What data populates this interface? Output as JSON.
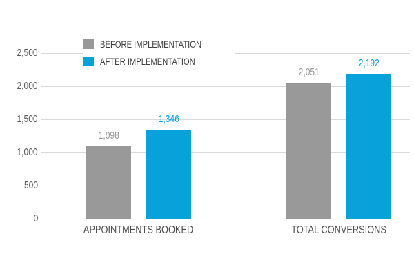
{
  "chart_data": {
    "type": "bar",
    "title": "",
    "xlabel": "",
    "ylabel": "",
    "categories": [
      "APPOINTMENTS BOOKED",
      "TOTAL CONVERSIONS"
    ],
    "series": [
      {
        "name": "BEFORE IMPLEMENTATION",
        "color": "#999999",
        "values": [
          1098,
          2051
        ],
        "value_labels": [
          "1,098",
          "2,051"
        ]
      },
      {
        "name": "AFTER IMPLEMENTATION",
        "color": "#09a1da",
        "values": [
          1346,
          2192
        ],
        "value_labels": [
          "1,346",
          "2,192"
        ]
      }
    ],
    "y_axis": {
      "min": 0,
      "max": 2500,
      "step": 500,
      "tick_labels": [
        "0",
        "500",
        "1,000",
        "1,500",
        "2,000",
        "2,500"
      ]
    },
    "grid": true,
    "legend_position": "top-left-inside"
  },
  "colors": {
    "background": "#ffffff",
    "gridline": "#d9d9d9",
    "y_tick_text": "#595959",
    "category_text": "#4c4c4c",
    "legend_text": "#404040",
    "before_bar": "#999999",
    "after_bar": "#09a1da"
  }
}
